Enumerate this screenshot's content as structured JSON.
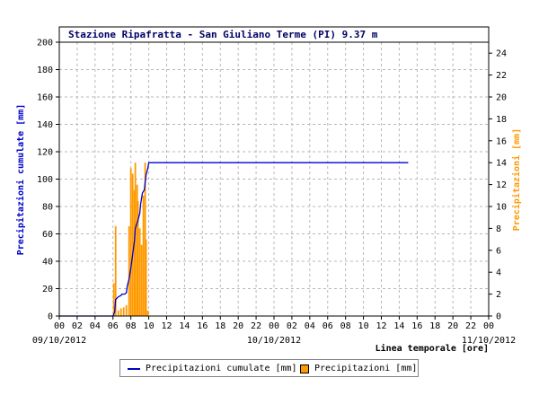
{
  "chart_data": {
    "type": "bar+line",
    "title": "Stazione Ripafratta - San Giuliano Terme (PI) 9.37 m",
    "xlabel": "Linea temporale [ore]",
    "ylabel_left": "Precipitazioni cumulate [mm]",
    "ylabel_right": "Precipitazioni [mm]",
    "ylim_left": [
      0,
      200
    ],
    "ylim_right": [
      0,
      25
    ],
    "left_ticks": [
      "0",
      "20",
      "40",
      "60",
      "80",
      "100",
      "120",
      "140",
      "160",
      "180",
      "200"
    ],
    "right_ticks": [
      "0",
      "2",
      "4",
      "6",
      "8",
      "10",
      "12",
      "14",
      "16",
      "18",
      "20",
      "22",
      "24"
    ],
    "x_tick_labels": [
      "00",
      "02",
      "04",
      "06",
      "08",
      "10",
      "12",
      "14",
      "16",
      "18",
      "20",
      "22",
      "00",
      "02",
      "04",
      "06",
      "08",
      "10",
      "12",
      "14",
      "16",
      "18",
      "20",
      "22",
      "00"
    ],
    "date_labels": [
      {
        "hour": 0,
        "label": "09/10/2012"
      },
      {
        "hour": 24,
        "label": "10/10/2012"
      },
      {
        "hour": 48,
        "label": "11/10/2012"
      }
    ],
    "xlim_hours": [
      0,
      48
    ],
    "grid": true,
    "legend_position": "bottom",
    "series": [
      {
        "name": "Precipitazioni cumulate [mm]",
        "type": "line",
        "axis": "left",
        "color": "#0000cc",
        "x_hours": [
          0,
          6.0,
          6.2,
          6.3,
          6.6,
          6.9,
          7.0,
          7.3,
          7.5,
          7.6,
          7.8,
          8.0,
          8.2,
          8.4,
          8.5,
          8.8,
          9.0,
          9.1,
          9.3,
          9.5,
          9.7,
          9.9,
          10.0,
          39.0
        ],
        "y": [
          0,
          0,
          3,
          12,
          14,
          15,
          16,
          16,
          17,
          22,
          27,
          35,
          45,
          55,
          64,
          70,
          75,
          82,
          90,
          92,
          103,
          108,
          112,
          112
        ]
      },
      {
        "name": "Precipitazioni [mm]",
        "type": "bar",
        "axis": "right",
        "color": "#ff9900",
        "x_hours": [
          6.1,
          6.3,
          6.6,
          6.9,
          7.2,
          7.5,
          7.8,
          8.0,
          8.2,
          8.4,
          8.5,
          8.7,
          8.8,
          9.0,
          9.2,
          9.4,
          9.6,
          9.7,
          9.9
        ],
        "values": [
          3,
          8.2,
          0.5,
          0.7,
          0.8,
          1.0,
          8.2,
          13.5,
          13.0,
          11.5,
          14.0,
          12.0,
          10.5,
          8.0,
          6.5,
          11.0,
          14.0,
          7.0,
          0.5
        ]
      }
    ]
  }
}
